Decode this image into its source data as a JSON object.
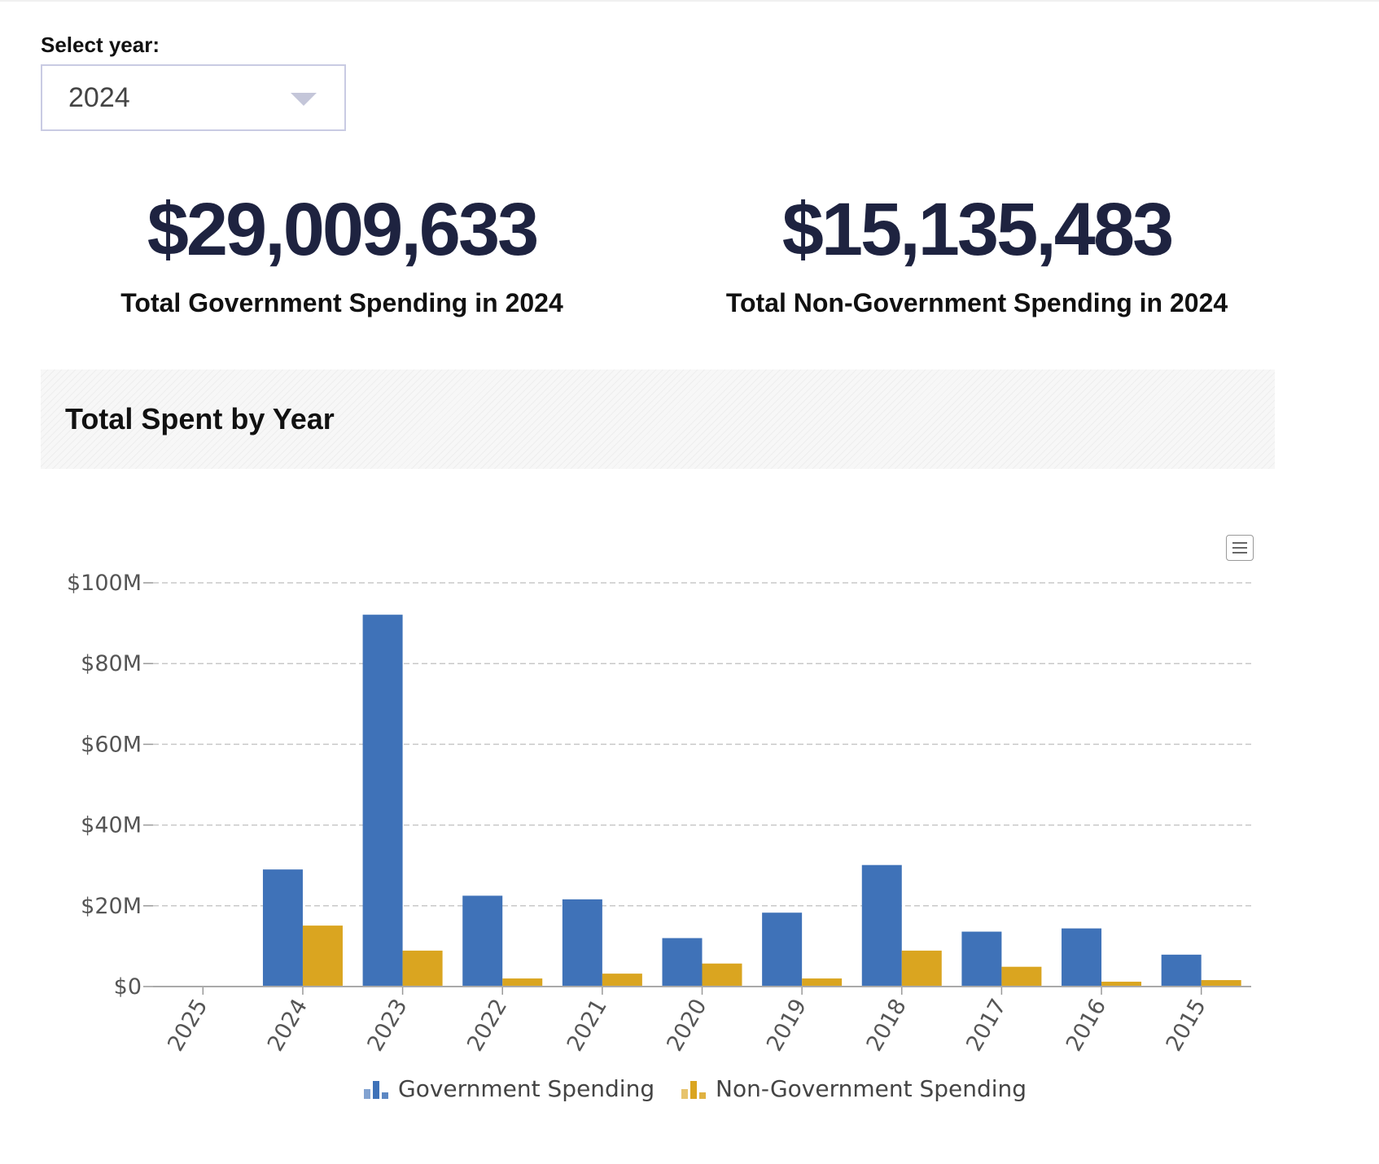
{
  "filter": {
    "label": "Select year:",
    "selected": "2024"
  },
  "kpis": {
    "government": {
      "value": "$29,009,633",
      "label": "Total Government Spending in 2024"
    },
    "non_government": {
      "value": "$15,135,483",
      "label": "Total Non-Government Spending in 2024"
    }
  },
  "panel": {
    "title": "Total Spent by Year"
  },
  "colors": {
    "government": "#3f72b8",
    "non_government": "#daa520",
    "grid": "#c8c8c8"
  },
  "icons": {
    "export_menu": "hamburger-menu-icon",
    "dropdown": "caret-down-icon",
    "legend": "bar-chart-icon"
  },
  "chart_data": {
    "type": "bar",
    "title": "Total Spent by Year",
    "xlabel": "",
    "ylabel": "",
    "categories": [
      "2025",
      "2024",
      "2023",
      "2022",
      "2021",
      "2020",
      "2019",
      "2018",
      "2017",
      "2016",
      "2015"
    ],
    "series": [
      {
        "name": "Government Spending",
        "values": [
          0.2,
          29.0,
          92.1,
          22.5,
          21.6,
          12.0,
          18.3,
          30.1,
          13.6,
          14.4,
          7.9
        ]
      },
      {
        "name": "Non-Government Spending",
        "values": [
          0.1,
          15.1,
          8.9,
          2.0,
          3.2,
          5.7,
          2.0,
          8.9,
          4.9,
          1.2,
          1.6
        ]
      }
    ],
    "units": "millions USD",
    "ylim": [
      0,
      100
    ],
    "yticks": [
      "$0",
      "$20M",
      "$40M",
      "$60M",
      "$80M",
      "$100M"
    ],
    "grid": true,
    "legend_position": "bottom-center"
  }
}
